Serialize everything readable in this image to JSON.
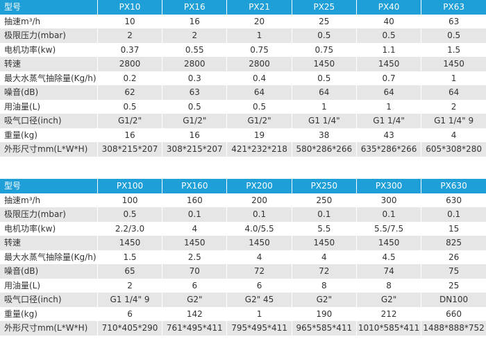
{
  "tables": [
    {
      "header": [
        "型号",
        "PX10",
        "PX16",
        "PX21",
        "PX25",
        "PX40",
        "PX63"
      ],
      "rows": [
        [
          "抽速m³/h",
          "10",
          "16",
          "20",
          "25",
          "40",
          "63"
        ],
        [
          "极限压力(mbar)",
          "2",
          "2",
          "1",
          "0.5",
          "0.5",
          "0.5"
        ],
        [
          "电机功率(kw)",
          "0.37",
          "0.55",
          "0.75",
          "0.75",
          "1.1",
          "1.5"
        ],
        [
          "转速",
          "2800",
          "2800",
          "2800",
          "1450",
          "1450",
          "1450"
        ],
        [
          "最大水蒸气抽除量(Kg/h)",
          "0.2",
          "0.3",
          "0.4",
          "0.5",
          "0.7",
          "1"
        ],
        [
          "噪音(dB)",
          "62",
          "63",
          "64",
          "64",
          "64",
          "64"
        ],
        [
          "用油量(L)",
          "0.5",
          "0.5",
          "0.5",
          "1",
          "1",
          "2"
        ],
        [
          "吸气口径(inch)",
          "G1/2\"",
          "G1/2\"",
          "G1/2\"",
          "G1 1/4\"",
          "G1 1/4\"",
          "G1 1/4\" 9"
        ],
        [
          "重量(kg)",
          "16",
          "16",
          "19",
          "38",
          "43",
          "4"
        ],
        [
          "外形尺寸mm(L*W*H)",
          "308*215*207",
          "308*215*207",
          "421*232*218",
          "580*286*266",
          "635*286*266",
          "605*308*280"
        ]
      ]
    },
    {
      "header": [
        "型号",
        "PX100",
        "PX160",
        "PX200",
        "PX250",
        "PX300",
        "PX630"
      ],
      "rows": [
        [
          "抽速m³/h",
          "100",
          "160",
          "200",
          "250",
          "300",
          "630"
        ],
        [
          "极限压力(mbar)",
          "0.5",
          "0.1",
          "0.1",
          "0.1",
          "0.1",
          "0.1"
        ],
        [
          "电机功率(kw)",
          "2.2/3.0",
          "4",
          "4.0/5.5",
          "5.5",
          "5.5/7.5",
          "15"
        ],
        [
          "转速",
          "1450",
          "1450",
          "1450",
          "1450",
          "1450",
          "825"
        ],
        [
          "最大水蒸气抽除量(Kg/h)",
          "1.5",
          "2.5",
          "4",
          "4",
          "4.5",
          "26"
        ],
        [
          "噪音(dB)",
          "65",
          "70",
          "72",
          "72",
          "74",
          "75"
        ],
        [
          "用油量(L)",
          "2",
          "6",
          "6",
          "8",
          "8",
          "25"
        ],
        [
          "吸气口径(inch)",
          "G1 1/4\" 9",
          "G2\"",
          "G2\" 45",
          "G2\"",
          "G2\"",
          "DN100"
        ],
        [
          "重量(kg)",
          "6",
          "142",
          "1",
          "190",
          "212",
          "660"
        ],
        [
          "外形尺寸mm(L*W*H)",
          "710*405*290",
          "761*495*411",
          "795*495*411",
          "965*585*411",
          "1010*585*411",
          "1488*888*752"
        ]
      ]
    }
  ]
}
